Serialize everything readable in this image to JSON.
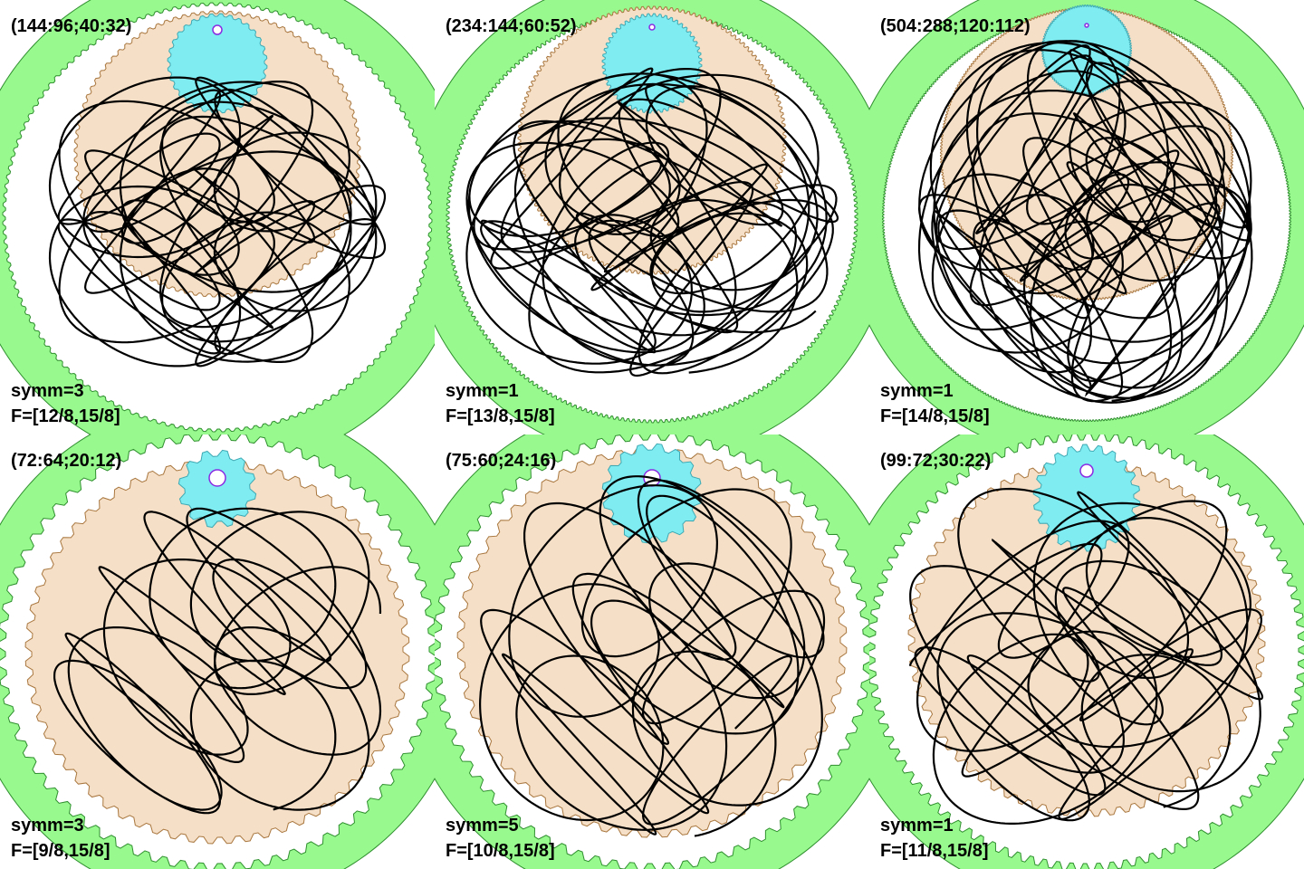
{
  "colors": {
    "ring": "#98f98e",
    "ring_stroke": "#2f8f2f",
    "gear": "#f5dfc6",
    "gear_stroke": "#a9773f",
    "pinion": "#7fecf2",
    "pinion_stroke": "#3fa9b3",
    "pen": "#ffffff",
    "pen_stroke": "#8a2be2",
    "curve": "#000000"
  },
  "panels": [
    {
      "title": "(144:96;40:32)",
      "symm": "symm=3",
      "freq": "F=[12/8,15/8]",
      "ring_teeth": 144,
      "gear_teeth": 96,
      "pinion_teeth": 32
    },
    {
      "title": "(234:144;60:52)",
      "symm": "symm=1",
      "freq": "F=[13/8,15/8]",
      "ring_teeth": 234,
      "gear_teeth": 144,
      "pinion_teeth": 52
    },
    {
      "title": "(504:288;120:112)",
      "symm": "symm=1",
      "freq": "F=[14/8,15/8]",
      "ring_teeth": 504,
      "gear_teeth": 288,
      "pinion_teeth": 112
    },
    {
      "title": "(72:64;20:12)",
      "symm": "symm=3",
      "freq": "F=[9/8,15/8]",
      "ring_teeth": 72,
      "gear_teeth": 64,
      "pinion_teeth": 12
    },
    {
      "title": "(75:60;24:16)",
      "symm": "symm=5",
      "freq": "F=[10/8,15/8]",
      "ring_teeth": 75,
      "gear_teeth": 60,
      "pinion_teeth": 16
    },
    {
      "title": "(99:72;30:22)",
      "symm": "symm=1",
      "freq": "F=[11/8,15/8]",
      "ring_teeth": 99,
      "gear_teeth": 72,
      "pinion_teeth": 22
    }
  ]
}
